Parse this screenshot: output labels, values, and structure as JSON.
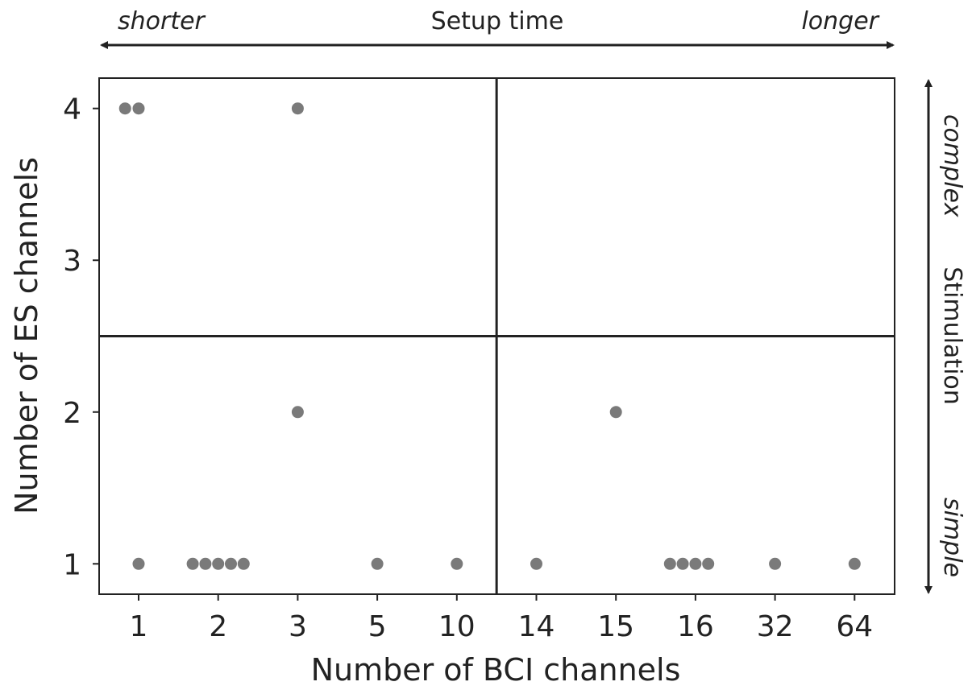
{
  "chart_data": {
    "type": "scatter",
    "xlabel": "Number of BCI channels",
    "ylabel": "Number of ES channels",
    "x_categories": [
      "1",
      "2",
      "3",
      "5",
      "10",
      "14",
      "15",
      "16",
      "32",
      "64"
    ],
    "y_ticks": [
      1,
      2,
      3,
      4
    ],
    "ylim": [
      0.8,
      4.2
    ],
    "grid": false,
    "dividers": {
      "x_between": [
        "10",
        "14"
      ],
      "y": 2.5
    },
    "point_color": "#7a7a7a",
    "points": [
      {
        "x": "1",
        "y": 4,
        "offset": -0.17
      },
      {
        "x": "1",
        "y": 4,
        "offset": 0
      },
      {
        "x": "3",
        "y": 4,
        "offset": 0
      },
      {
        "x": "3",
        "y": 2,
        "offset": 0
      },
      {
        "x": "15",
        "y": 2,
        "offset": 0
      },
      {
        "x": "1",
        "y": 1,
        "offset": 0
      },
      {
        "x": "2",
        "y": 1,
        "offset": -0.32
      },
      {
        "x": "2",
        "y": 1,
        "offset": -0.16
      },
      {
        "x": "2",
        "y": 1,
        "offset": 0
      },
      {
        "x": "2",
        "y": 1,
        "offset": 0.16
      },
      {
        "x": "2",
        "y": 1,
        "offset": 0.32
      },
      {
        "x": "5",
        "y": 1,
        "offset": 0
      },
      {
        "x": "10",
        "y": 1,
        "offset": 0
      },
      {
        "x": "14",
        "y": 1,
        "offset": 0
      },
      {
        "x": "16",
        "y": 1,
        "offset": -0.32
      },
      {
        "x": "16",
        "y": 1,
        "offset": -0.16
      },
      {
        "x": "16",
        "y": 1,
        "offset": 0
      },
      {
        "x": "16",
        "y": 1,
        "offset": 0.16
      },
      {
        "x": "32",
        "y": 1,
        "offset": 0
      },
      {
        "x": "64",
        "y": 1,
        "offset": 0
      }
    ],
    "annotations": {
      "top": {
        "title": "Setup time",
        "left": "shorter",
        "right": "longer"
      },
      "right": {
        "title": "Stimulation",
        "top": "complex",
        "bottom": "simple"
      }
    }
  }
}
